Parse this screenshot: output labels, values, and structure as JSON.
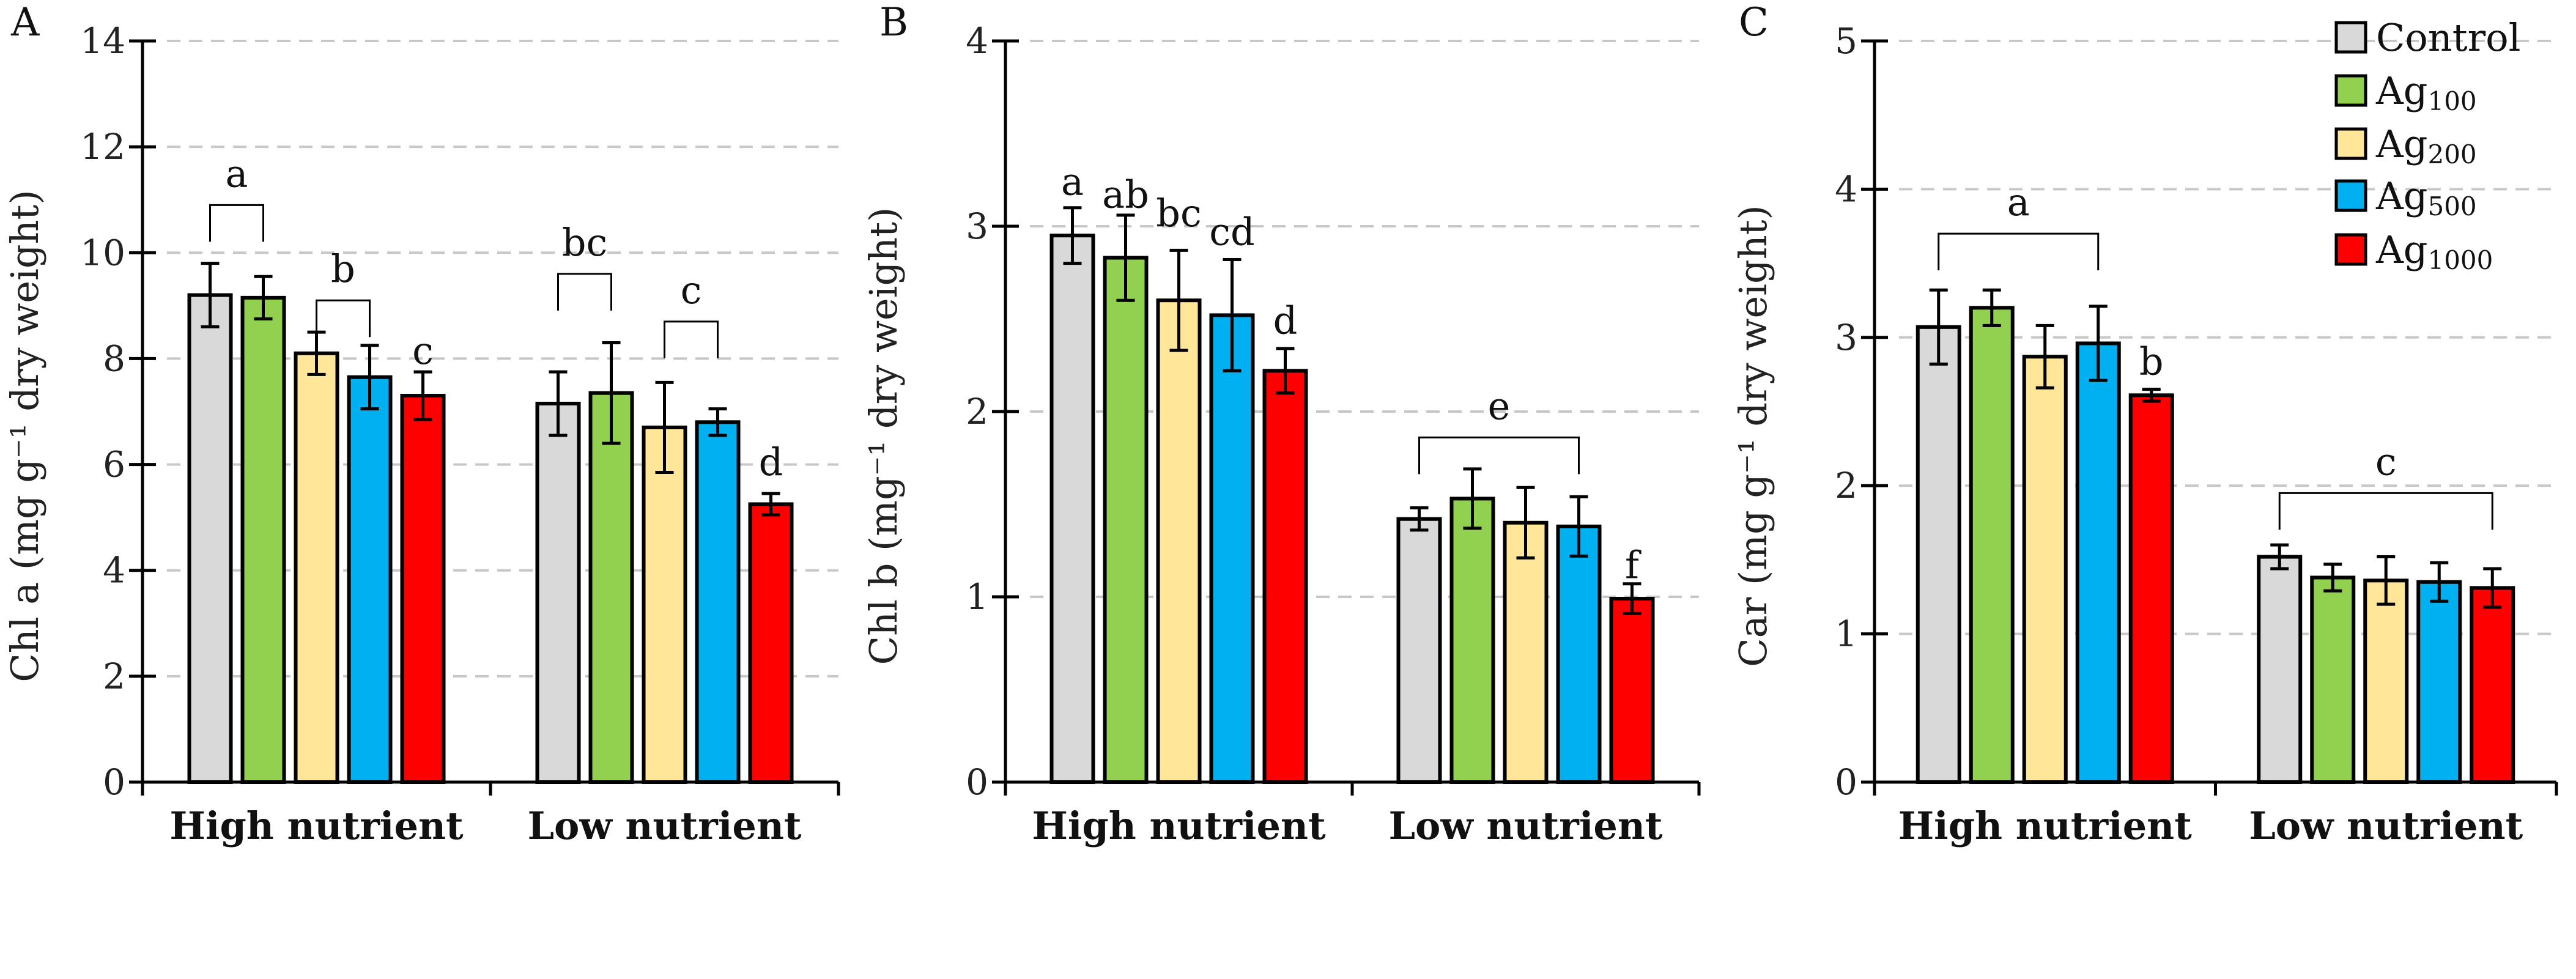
{
  "legend": {
    "placement": "top-right",
    "items": [
      {
        "base": "Control",
        "sub": "",
        "color": "#d9d9d9"
      },
      {
        "base": "Ag",
        "sub": "100",
        "color": "#92d050"
      },
      {
        "base": "Ag",
        "sub": "200",
        "color": "#ffe699"
      },
      {
        "base": "Ag",
        "sub": "500",
        "color": "#00b0f0"
      },
      {
        "base": "Ag",
        "sub": "1000",
        "color": "#ff0000"
      }
    ]
  },
  "chart_data": [
    {
      "type": "bar",
      "panel": "A",
      "ylabel": "Chl a (mg g⁻¹ dry weight)",
      "ylim": [
        0,
        14
      ],
      "yticks": [
        0,
        2,
        4,
        6,
        8,
        10,
        12,
        14
      ],
      "grid": true,
      "categories": [
        "High nutrient",
        "Low nutrient"
      ],
      "series": [
        {
          "name": "Control",
          "values": [
            9.2,
            7.15
          ],
          "errors": [
            0.6,
            0.6
          ]
        },
        {
          "name": "Ag100",
          "values": [
            9.15,
            7.35
          ],
          "errors": [
            0.4,
            0.95
          ]
        },
        {
          "name": "Ag200",
          "values": [
            8.1,
            6.7
          ],
          "errors": [
            0.4,
            0.85
          ]
        },
        {
          "name": "Ag500",
          "values": [
            7.65,
            6.8
          ],
          "errors": [
            0.6,
            0.25
          ]
        },
        {
          "name": "Ag1000",
          "values": [
            7.3,
            5.25
          ],
          "errors": [
            0.45,
            0.2
          ]
        }
      ],
      "annotations": [
        {
          "text": "a",
          "group": 0,
          "bars": [
            0,
            1
          ],
          "bracket": true,
          "y": 10.9
        },
        {
          "text": "b",
          "group": 0,
          "bars": [
            2,
            3
          ],
          "bracket": true,
          "y": 9.1
        },
        {
          "text": "c",
          "group": 0,
          "bars": [
            4,
            4
          ],
          "bracket": false,
          "y": 7.9
        },
        {
          "text": "bc",
          "group": 1,
          "bars": [
            0,
            1
          ],
          "bracket": true,
          "y": 9.6
        },
        {
          "text": "c",
          "group": 1,
          "bars": [
            2,
            3
          ],
          "bracket": true,
          "y": 8.7
        },
        {
          "text": "d",
          "group": 1,
          "bars": [
            4,
            4
          ],
          "bracket": false,
          "y": 5.8
        }
      ]
    },
    {
      "type": "bar",
      "panel": "B",
      "ylabel": "Chl b (mg⁻¹ dry weight)",
      "ylim": [
        0,
        4
      ],
      "yticks": [
        0,
        1,
        2,
        3,
        4
      ],
      "grid": true,
      "categories": [
        "High nutrient",
        "Low nutrient"
      ],
      "series": [
        {
          "name": "Control",
          "values": [
            2.95,
            1.42
          ],
          "errors": [
            0.15,
            0.06
          ]
        },
        {
          "name": "Ag100",
          "values": [
            2.83,
            1.53
          ],
          "errors": [
            0.23,
            0.16
          ]
        },
        {
          "name": "Ag200",
          "values": [
            2.6,
            1.4
          ],
          "errors": [
            0.27,
            0.19
          ]
        },
        {
          "name": "Ag500",
          "values": [
            2.52,
            1.38
          ],
          "errors": [
            0.3,
            0.16
          ]
        },
        {
          "name": "Ag1000",
          "values": [
            2.22,
            0.99
          ],
          "errors": [
            0.12,
            0.08
          ]
        }
      ],
      "annotations": [
        {
          "text": "a",
          "group": 0,
          "bars": [
            0,
            0
          ],
          "bracket": false,
          "y": 3.17
        },
        {
          "text": "ab",
          "group": 0,
          "bars": [
            1,
            1
          ],
          "bracket": false,
          "y": 3.1
        },
        {
          "text": "bc",
          "group": 0,
          "bars": [
            2,
            2
          ],
          "bracket": false,
          "y": 3.0
        },
        {
          "text": "cd",
          "group": 0,
          "bars": [
            3,
            3
          ],
          "bracket": false,
          "y": 2.9
        },
        {
          "text": "d",
          "group": 0,
          "bars": [
            4,
            4
          ],
          "bracket": false,
          "y": 2.42
        },
        {
          "text": "e",
          "group": 1,
          "bars": [
            0,
            3
          ],
          "bracket": true,
          "y": 1.86
        },
        {
          "text": "f",
          "group": 1,
          "bars": [
            4,
            4
          ],
          "bracket": false,
          "y": 1.1
        }
      ]
    },
    {
      "type": "bar",
      "panel": "C",
      "ylabel": "Car (mg g⁻¹ dry weight)",
      "ylim": [
        0,
        5
      ],
      "yticks": [
        0,
        1,
        2,
        3,
        4,
        5
      ],
      "grid": true,
      "categories": [
        "High nutrient",
        "Low nutrient"
      ],
      "series": [
        {
          "name": "Control",
          "values": [
            3.07,
            1.52
          ],
          "errors": [
            0.25,
            0.08
          ]
        },
        {
          "name": "Ag100",
          "values": [
            3.2,
            1.38
          ],
          "errors": [
            0.12,
            0.09
          ]
        },
        {
          "name": "Ag200",
          "values": [
            2.87,
            1.36
          ],
          "errors": [
            0.21,
            0.16
          ]
        },
        {
          "name": "Ag500",
          "values": [
            2.96,
            1.35
          ],
          "errors": [
            0.25,
            0.13
          ]
        },
        {
          "name": "Ag1000",
          "values": [
            2.61,
            1.31
          ],
          "errors": [
            0.04,
            0.13
          ]
        }
      ],
      "annotations": [
        {
          "text": "a",
          "group": 0,
          "bars": [
            0,
            3
          ],
          "bracket": true,
          "y": 3.7
        },
        {
          "text": "b",
          "group": 0,
          "bars": [
            4,
            4
          ],
          "bracket": false,
          "y": 2.75
        },
        {
          "text": "c",
          "group": 1,
          "bars": [
            0,
            4
          ],
          "bracket": true,
          "y": 1.95
        }
      ]
    }
  ]
}
